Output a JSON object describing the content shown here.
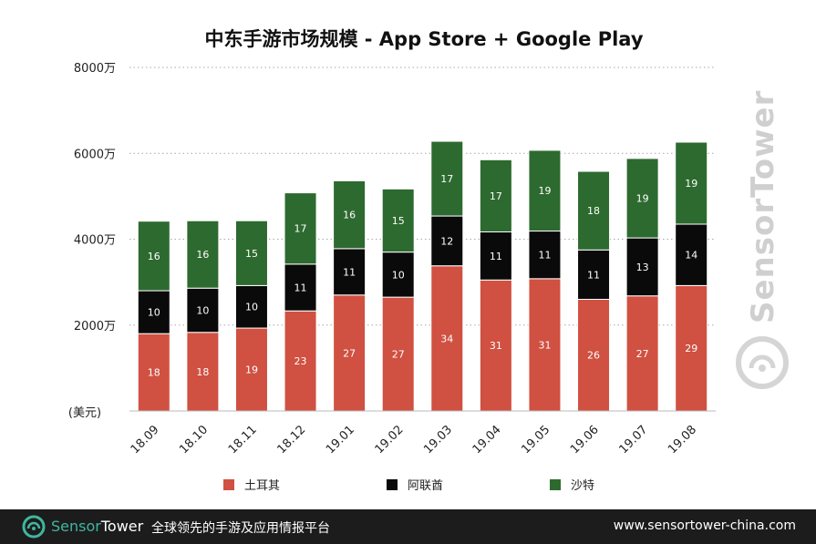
{
  "chart_data": {
    "type": "bar",
    "stacked": true,
    "title": "中东手游市场规模 - App Store + Google Play",
    "ylabel": "(美元)",
    "ylim": [
      0,
      8000
    ],
    "yticks": [
      {
        "value": 2000,
        "label": "2000万"
      },
      {
        "value": 4000,
        "label": "4000万"
      },
      {
        "value": 6000,
        "label": "6000万"
      },
      {
        "value": 8000,
        "label": "8000万"
      }
    ],
    "grid": true,
    "legend_position": "bottom",
    "categories": [
      "18.09",
      "18.10",
      "18.11",
      "18.12",
      "19.01",
      "19.02",
      "19.03",
      "19.04",
      "19.05",
      "19.06",
      "19.07",
      "19.08"
    ],
    "series": [
      {
        "name": "土耳其",
        "color": "#d05041",
        "values": [
          1800,
          1830,
          1930,
          2330,
          2700,
          2650,
          3380,
          3050,
          3080,
          2600,
          2680,
          2920
        ],
        "labels": [
          "18",
          "18",
          "19",
          "23",
          "27",
          "27",
          "34",
          "31",
          "31",
          "26",
          "27",
          "29"
        ]
      },
      {
        "name": "阿联酋",
        "color": "#0a0a0a",
        "values": [
          1000,
          1030,
          990,
          1090,
          1080,
          1050,
          1160,
          1120,
          1110,
          1150,
          1350,
          1430
        ],
        "labels": [
          "10",
          "10",
          "10",
          "11",
          "11",
          "10",
          "12",
          "11",
          "11",
          "11",
          "13",
          "14"
        ]
      },
      {
        "name": "沙特",
        "color": "#2d6a2f",
        "values": [
          1620,
          1570,
          1510,
          1660,
          1580,
          1470,
          1740,
          1680,
          1880,
          1830,
          1850,
          1910
        ],
        "labels": [
          "16",
          "16",
          "15",
          "17",
          "16",
          "15",
          "17",
          "17",
          "19",
          "18",
          "19",
          "19"
        ]
      }
    ]
  },
  "watermark": {
    "text": "SensorTower",
    "icon": "sensor-tower-logo-icon"
  },
  "footer": {
    "brand_part1": "Sensor",
    "brand_part2": "Tower",
    "brand_icon": "sensor-tower-logo-icon",
    "slogan": "全球领先的手游及应用情报平台",
    "website": "www.sensortower-china.com",
    "background": "#1c1c1c",
    "accent": "#3fb6a0"
  }
}
